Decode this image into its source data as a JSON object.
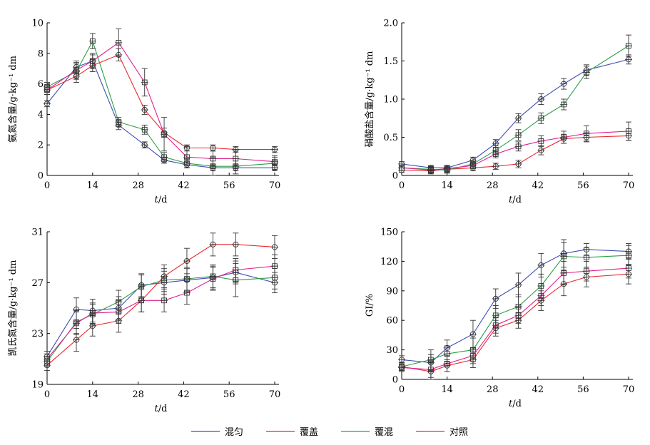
{
  "legend": {
    "items": [
      {
        "label": "混匀",
        "color": "#3f4fb0"
      },
      {
        "label": "覆盖",
        "color": "#e8282e"
      },
      {
        "label": "覆混",
        "color": "#2e9e4a"
      },
      {
        "label": "对照",
        "color": "#e0208e"
      }
    ]
  },
  "chart_data": [
    {
      "type": "line",
      "ylabel": "氨氮含量/g·kg⁻¹ dm",
      "xlabel_italic": "t",
      "xlabel_unit": "/d",
      "xlim": [
        0,
        70
      ],
      "ylim": [
        0,
        10
      ],
      "xticks": [
        0,
        14,
        28,
        42,
        56,
        70
      ],
      "yticks": [
        0,
        2,
        4,
        6,
        8,
        10
      ],
      "x": [
        0,
        9,
        14,
        22,
        30,
        36,
        43,
        51,
        58,
        70
      ],
      "series": [
        {
          "name": "混匀",
          "values": [
            4.7,
            7.1,
            7.5,
            3.3,
            2.0,
            1.0,
            0.7,
            0.5,
            0.5,
            0.5
          ],
          "err": [
            0.2,
            0.4,
            0.4,
            0.3,
            0.2,
            0.2,
            0.2,
            0.2,
            0.2,
            0.2
          ]
        },
        {
          "name": "覆盖",
          "values": [
            5.6,
            6.5,
            7.2,
            7.9,
            4.3,
            2.8,
            1.8,
            1.8,
            1.7,
            1.7
          ],
          "err": [
            0.3,
            0.4,
            0.4,
            0.4,
            0.3,
            0.3,
            0.2,
            0.2,
            0.2,
            0.2
          ]
        },
        {
          "name": "覆混",
          "values": [
            5.8,
            6.8,
            8.8,
            3.5,
            3.0,
            1.2,
            0.8,
            0.6,
            0.6,
            0.8
          ],
          "err": [
            0.3,
            0.5,
            0.5,
            0.3,
            0.3,
            0.3,
            0.3,
            0.6,
            0.5,
            0.4
          ]
        },
        {
          "name": "对照",
          "values": [
            5.6,
            6.9,
            7.5,
            8.7,
            6.1,
            2.7,
            1.2,
            1.1,
            1.1,
            0.9
          ],
          "err": [
            0.3,
            0.5,
            0.5,
            0.9,
            0.9,
            1.1,
            0.7,
            0.5,
            0.5,
            0.4
          ]
        }
      ]
    },
    {
      "type": "line",
      "ylabel": "硝酸盐含量/g·kg⁻¹ dm",
      "xlabel_italic": "t",
      "xlabel_unit": "/d",
      "xlim": [
        0,
        70
      ],
      "ylim": [
        0,
        2.0
      ],
      "xticks": [
        0,
        14,
        28,
        42,
        56,
        70
      ],
      "yticks": [
        0,
        0.5,
        1.0,
        1.5,
        2.0
      ],
      "ytick_labels": [
        "0",
        "0.5",
        "1.0",
        "1.5",
        "2.0"
      ],
      "x": [
        0,
        9,
        14,
        22,
        29,
        36,
        43,
        50,
        57,
        70
      ],
      "series": [
        {
          "name": "混匀",
          "values": [
            0.15,
            0.1,
            0.1,
            0.2,
            0.42,
            0.75,
            1.0,
            1.2,
            1.38,
            1.52
          ],
          "err": [
            0.03,
            0.03,
            0.03,
            0.04,
            0.05,
            0.06,
            0.07,
            0.07,
            0.07,
            0.06
          ]
        },
        {
          "name": "覆盖",
          "values": [
            0.07,
            0.06,
            0.08,
            0.1,
            0.12,
            0.15,
            0.33,
            0.48,
            0.5,
            0.52
          ],
          "err": [
            0.03,
            0.04,
            0.04,
            0.04,
            0.04,
            0.05,
            0.06,
            0.06,
            0.06,
            0.06
          ]
        },
        {
          "name": "覆混",
          "values": [
            0.1,
            0.08,
            0.07,
            0.15,
            0.33,
            0.53,
            0.75,
            0.93,
            1.35,
            1.7
          ],
          "err": [
            0.03,
            0.04,
            0.04,
            0.05,
            0.06,
            0.07,
            0.07,
            0.07,
            0.08,
            0.14
          ]
        },
        {
          "name": "对照",
          "values": [
            0.1,
            0.07,
            0.09,
            0.13,
            0.28,
            0.38,
            0.45,
            0.5,
            0.55,
            0.58
          ],
          "err": [
            0.03,
            0.04,
            0.04,
            0.04,
            0.05,
            0.06,
            0.07,
            0.08,
            0.1,
            0.12
          ]
        }
      ]
    },
    {
      "type": "line",
      "ylabel": "凯氏氮含量/g·kg⁻¹ dm",
      "xlabel_italic": "t",
      "xlabel_unit": "/d",
      "xlim": [
        0,
        70
      ],
      "ylim": [
        19,
        31
      ],
      "xticks": [
        0,
        14,
        28,
        42,
        56,
        70
      ],
      "yticks": [
        19,
        23,
        27,
        31
      ],
      "x": [
        0,
        9,
        14,
        22,
        29,
        36,
        43,
        51,
        58,
        70
      ],
      "series": [
        {
          "name": "混匀",
          "values": [
            21.2,
            24.9,
            24.8,
            25.0,
            26.8,
            27.0,
            27.2,
            27.4,
            27.8,
            27.0
          ],
          "err": [
            0.4,
            0.9,
            0.9,
            0.9,
            0.9,
            0.9,
            0.9,
            0.9,
            0.9,
            0.8
          ]
        },
        {
          "name": "覆盖",
          "values": [
            20.5,
            22.5,
            23.6,
            24.0,
            25.6,
            27.5,
            28.7,
            30.0,
            30.0,
            29.8
          ],
          "err": [
            0.4,
            0.9,
            0.8,
            0.9,
            0.9,
            0.9,
            1.0,
            0.9,
            0.9,
            0.9
          ]
        },
        {
          "name": "覆混",
          "values": [
            20.8,
            23.9,
            24.5,
            25.5,
            26.7,
            27.2,
            27.3,
            27.5,
            27.2,
            27.4
          ],
          "err": [
            0.4,
            0.9,
            0.8,
            0.9,
            0.9,
            0.9,
            0.9,
            0.9,
            1.3,
            0.9
          ]
        },
        {
          "name": "对照",
          "values": [
            21.0,
            23.8,
            24.6,
            24.7,
            25.6,
            25.6,
            26.2,
            27.3,
            28.0,
            28.3
          ],
          "err": [
            0.4,
            0.9,
            0.8,
            0.9,
            0.9,
            0.9,
            0.9,
            0.9,
            0.9,
            0.9
          ]
        }
      ]
    },
    {
      "type": "line",
      "ylabel": "GI/%",
      "xlabel_italic": "t",
      "xlabel_unit": "/d",
      "xlim": [
        0,
        70
      ],
      "ylim": [
        0,
        150
      ],
      "xticks": [
        0,
        14,
        28,
        42,
        56,
        70
      ],
      "yticks": [
        0,
        30,
        60,
        90,
        120,
        150
      ],
      "x": [
        0,
        9,
        14,
        22,
        29,
        36,
        43,
        50,
        57,
        70
      ],
      "series": [
        {
          "name": "混匀",
          "values": [
            20,
            17,
            32,
            46,
            82,
            96,
            116,
            128,
            132,
            130
          ],
          "err": [
            4,
            8,
            8,
            14,
            10,
            12,
            12,
            14,
            6,
            8
          ]
        },
        {
          "name": "覆盖",
          "values": [
            13,
            8,
            14,
            20,
            52,
            60,
            80,
            97,
            104,
            107
          ],
          "err": [
            4,
            8,
            6,
            8,
            8,
            8,
            10,
            12,
            10,
            10
          ]
        },
        {
          "name": "覆混",
          "values": [
            13,
            20,
            26,
            30,
            65,
            74,
            95,
            125,
            124,
            126
          ],
          "err": [
            4,
            10,
            8,
            12,
            10,
            12,
            12,
            14,
            10,
            10
          ]
        },
        {
          "name": "对照",
          "values": [
            12,
            10,
            16,
            24,
            55,
            65,
            85,
            108,
            110,
            113
          ],
          "err": [
            4,
            8,
            8,
            8,
            8,
            8,
            10,
            12,
            10,
            10
          ]
        }
      ]
    }
  ]
}
